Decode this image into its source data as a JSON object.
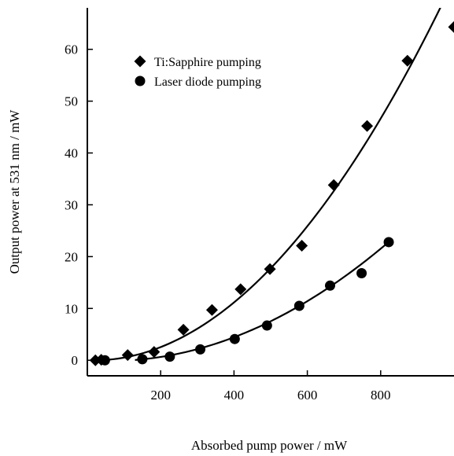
{
  "chart_data": {
    "type": "scatter",
    "xlabel": "Absorbed pump power / mW",
    "ylabel": "Output power at 531 nm / mW",
    "xlim": [
      0,
      1000
    ],
    "ylim": [
      -3,
      68
    ],
    "xticks": [
      200,
      400,
      600,
      800
    ],
    "yticks": [
      0,
      10,
      20,
      30,
      40,
      50,
      60
    ],
    "grid": false,
    "legend_position": "top-left",
    "series": [
      {
        "name": "Ti:Sapphire pumping",
        "marker": "diamond",
        "color": "#000000",
        "x": [
          22,
          38,
          110,
          182,
          262,
          340,
          418,
          498,
          585,
          672,
          763,
          873,
          1000
        ],
        "y": [
          0.0,
          0.1,
          1.0,
          1.6,
          5.9,
          9.7,
          13.7,
          17.6,
          22.1,
          33.8,
          45.2,
          57.8,
          64.3
        ]
      },
      {
        "name": "Laser diode pumping",
        "marker": "circle",
        "color": "#000000",
        "x": [
          48,
          150,
          225,
          308,
          402,
          490,
          578,
          662,
          748,
          822
        ],
        "y": [
          0.0,
          0.2,
          0.7,
          2.1,
          4.1,
          6.7,
          10.5,
          14.4,
          16.8,
          22.8
        ]
      }
    ],
    "fit_curves": [
      {
        "series": "Ti:Sapphire pumping",
        "x_start": 60,
        "x_end": 1000,
        "a": 7.6e-05,
        "b": -0.0025
      },
      {
        "series": "Laser diode pumping",
        "x_start": 130,
        "x_end": 822,
        "a": 3.95e-05,
        "b": -0.0047
      }
    ]
  }
}
